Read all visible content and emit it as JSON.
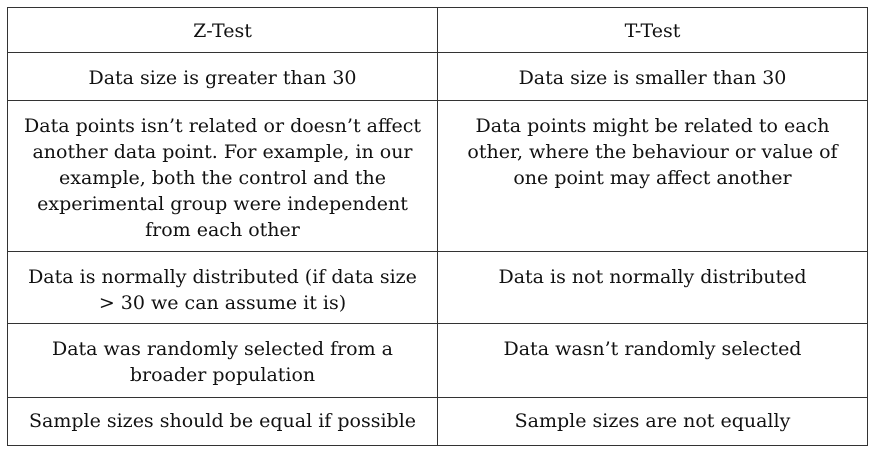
{
  "table": {
    "headers": [
      "Z-Test",
      "T-Test"
    ],
    "rows": [
      [
        "Data size is greater than 30",
        "Data size is smaller than 30"
      ],
      [
        "Data points isn’t related or doesn’t affect another data point. For example, in our example, both the control and the experimental group were independent from each other",
        "Data points might be related to each other, where the behaviour or value of one point may affect another"
      ],
      [
        "Data is normally distributed (if data size > 30 we can assume it is)",
        "Data is not normally distributed"
      ],
      [
        "Data was randomly selected from a broader population",
        "Data wasn’t randomly selected"
      ],
      [
        "Sample sizes should be equal if possible",
        "Sample sizes are not equally"
      ]
    ]
  }
}
